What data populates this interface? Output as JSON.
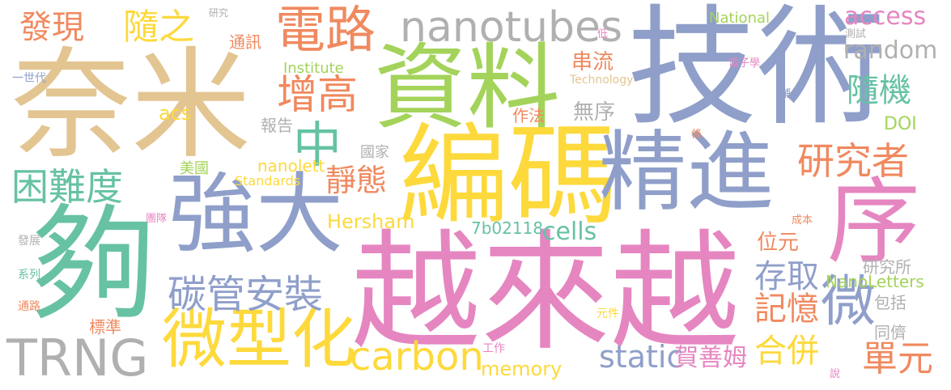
{
  "palette": [
    "#e3c591",
    "#8f9fca",
    "#a3d35a",
    "#fdd93c",
    "#e586c1",
    "#f0895f",
    "#66c2a3",
    "#b0b0b0"
  ],
  "words": [
    {
      "text": "技術"
    },
    {
      "text": "奈米"
    },
    {
      "text": "資料"
    },
    {
      "text": "越來越"
    },
    {
      "text": "編碼"
    },
    {
      "text": "精進"
    },
    {
      "text": "夠"
    },
    {
      "text": "強大"
    },
    {
      "text": "序"
    },
    {
      "text": "微型化"
    },
    {
      "text": "電路"
    },
    {
      "text": "nanotubes"
    },
    {
      "text": "TRNG"
    },
    {
      "text": "碳管安裝"
    },
    {
      "text": "中"
    },
    {
      "text": "微"
    },
    {
      "text": "carbon"
    },
    {
      "text": "研究者"
    },
    {
      "text": "困難度"
    },
    {
      "text": "增高"
    },
    {
      "text": "發現"
    },
    {
      "text": "隨之"
    },
    {
      "text": "靜態"
    },
    {
      "text": "static"
    },
    {
      "text": "random"
    },
    {
      "text": "access"
    },
    {
      "text": "隨機"
    },
    {
      "text": "存取"
    },
    {
      "text": "記憶"
    },
    {
      "text": "單元"
    },
    {
      "text": "合併"
    },
    {
      "text": "memory"
    },
    {
      "text": "cells"
    },
    {
      "text": "Hersham"
    },
    {
      "text": "賀善姆"
    },
    {
      "text": "串流"
    },
    {
      "text": "位元"
    },
    {
      "text": "無序"
    },
    {
      "text": "acs"
    },
    {
      "text": "nanolett"
    },
    {
      "text": "7b02118"
    },
    {
      "text": "DOI"
    },
    {
      "text": "NanoLetters"
    },
    {
      "text": "National"
    },
    {
      "text": "Institute"
    },
    {
      "text": "Standards"
    },
    {
      "text": "Technology"
    },
    {
      "text": "通訊"
    },
    {
      "text": "作法"
    },
    {
      "text": "報告"
    },
    {
      "text": "國家"
    },
    {
      "text": "美國"
    },
    {
      "text": "研究所"
    },
    {
      "text": "包括"
    },
    {
      "text": "同儕"
    },
    {
      "text": "標準"
    },
    {
      "text": "團隊"
    },
    {
      "text": "一世代"
    },
    {
      "text": "發展"
    },
    {
      "text": "系列"
    },
    {
      "text": "通路"
    },
    {
      "text": "元件"
    },
    {
      "text": "工作"
    },
    {
      "text": "說"
    },
    {
      "text": "成本"
    },
    {
      "text": "鋪"
    },
    {
      "text": "條"
    },
    {
      "text": "電子學"
    },
    {
      "text": "測試"
    },
    {
      "text": "低"
    },
    {
      "text": "研究"
    }
  ]
}
